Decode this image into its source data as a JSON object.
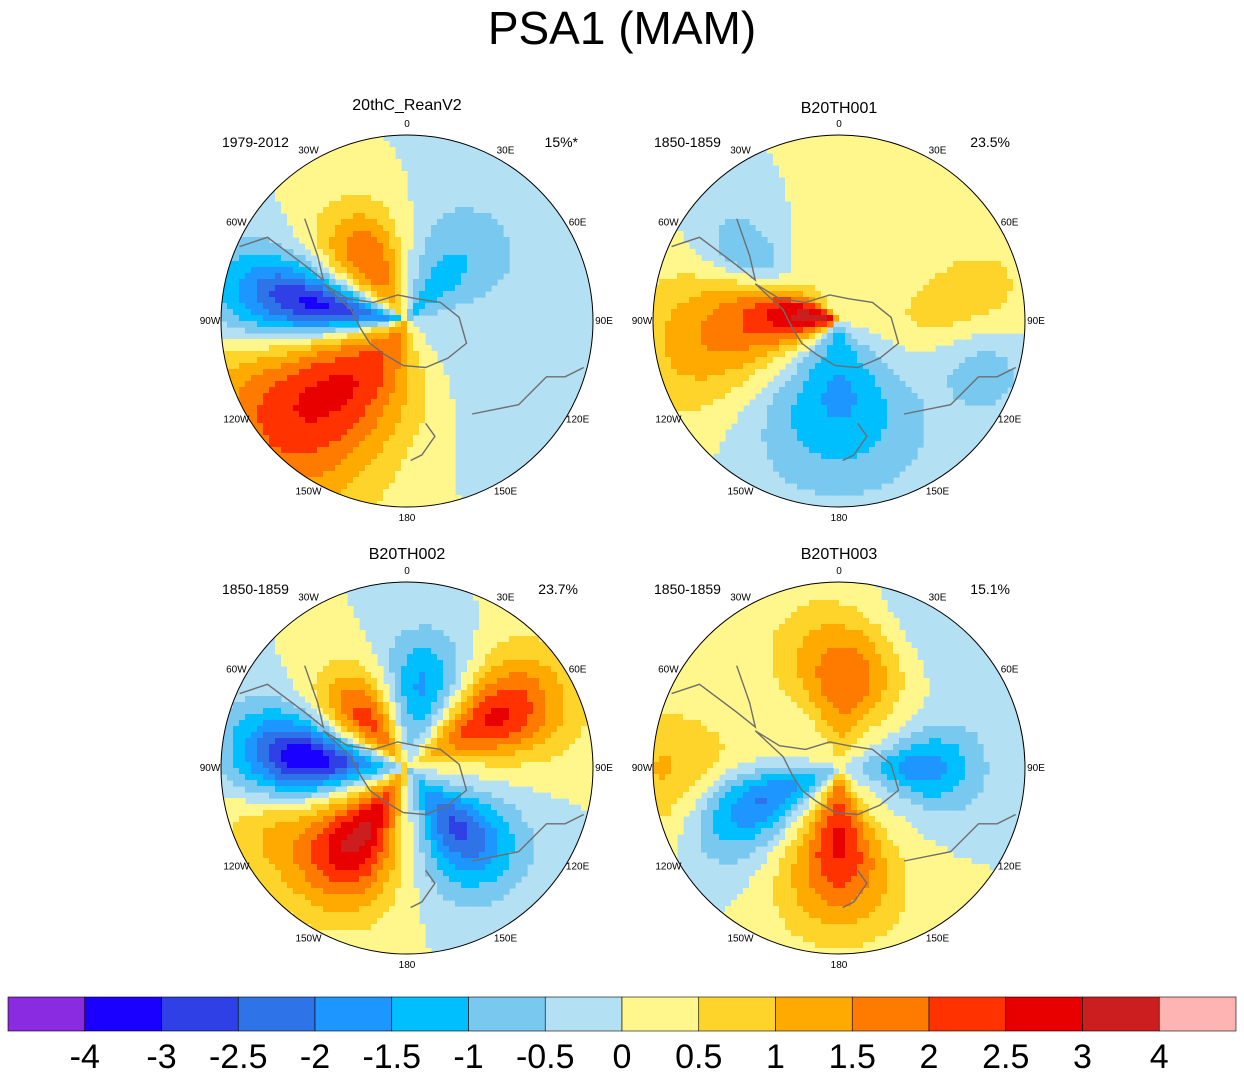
{
  "title": "PSA1 (MAM)",
  "lon_labels": [
    "0",
    "30E",
    "60E",
    "90E",
    "120E",
    "150E",
    "180",
    "150W",
    "120W",
    "90W",
    "60W",
    "30W"
  ],
  "panels": [
    {
      "name": "20thC_ReanV2",
      "years": "1979-2012",
      "variance": "15%*",
      "blobs": [
        {
          "r": 0.52,
          "a": 280,
          "sr": 0.5,
          "sa": 0.32,
          "v": -3.4
        },
        {
          "r": 0.38,
          "a": 328,
          "sr": 0.32,
          "sa": 0.45,
          "v": 2.0
        },
        {
          "r": 0.25,
          "a": 40,
          "sr": 0.5,
          "sa": 0.6,
          "v": -1.2
        },
        {
          "r": 0.72,
          "a": 230,
          "sr": 0.6,
          "sa": 0.6,
          "v": 2.4
        },
        {
          "r": 0.7,
          "a": 120,
          "sr": 0.45,
          "sa": 0.6,
          "v": -0.5
        },
        {
          "r": 0.25,
          "a": 200,
          "sr": 0.4,
          "sa": 0.7,
          "v": 1.2
        }
      ]
    },
    {
      "name": "B20TH001",
      "years": "1850-1859",
      "variance": "23.5%",
      "blobs": [
        {
          "r": 0.12,
          "a": 280,
          "sr": 0.45,
          "sa": 0.6,
          "v": 3.2
        },
        {
          "r": 0.55,
          "a": 305,
          "sr": 0.3,
          "sa": 0.3,
          "v": -1.6
        },
        {
          "r": 0.4,
          "a": 180,
          "sr": 0.5,
          "sa": 0.8,
          "v": -1.6
        },
        {
          "r": 0.7,
          "a": 90,
          "sr": 0.4,
          "sa": 0.5,
          "v": 1.2
        },
        {
          "r": 0.75,
          "a": 260,
          "sr": 0.4,
          "sa": 0.5,
          "v": 1.2
        },
        {
          "r": 0.8,
          "a": 105,
          "sr": 0.3,
          "sa": 0.35,
          "v": -1.4
        }
      ]
    },
    {
      "name": "B20TH002",
      "years": "1850-1859",
      "variance": "23.7%",
      "blobs": [
        {
          "r": 0.55,
          "a": 275,
          "sr": 0.38,
          "sa": 0.35,
          "v": -3.6
        },
        {
          "r": 0.45,
          "a": 215,
          "sr": 0.4,
          "sa": 0.45,
          "v": 3.2
        },
        {
          "r": 0.55,
          "a": 60,
          "sr": 0.4,
          "sa": 0.4,
          "v": 2.6
        },
        {
          "r": 0.42,
          "a": 140,
          "sr": 0.35,
          "sa": 0.45,
          "v": -2.6
        },
        {
          "r": 0.35,
          "a": 320,
          "sr": 0.3,
          "sa": 0.4,
          "v": 2.2
        },
        {
          "r": 0.45,
          "a": 10,
          "sr": 0.3,
          "sa": 0.4,
          "v": -1.6
        },
        {
          "r": 0.8,
          "a": 250,
          "sr": 0.3,
          "sa": 0.35,
          "v": 1.0
        }
      ]
    },
    {
      "name": "B20TH003",
      "years": "1850-1859",
      "variance": "15.1%",
      "blobs": [
        {
          "r": 0.5,
          "a": 250,
          "sr": 0.4,
          "sa": 0.4,
          "v": -2.6
        },
        {
          "r": 0.5,
          "a": 5,
          "sr": 0.4,
          "sa": 0.6,
          "v": 2.0
        },
        {
          "r": 0.4,
          "a": 180,
          "sr": 0.45,
          "sa": 0.5,
          "v": 2.6
        },
        {
          "r": 0.45,
          "a": 90,
          "sr": 0.3,
          "sa": 0.4,
          "v": -1.8
        },
        {
          "r": 0.8,
          "a": 265,
          "sr": 0.45,
          "sa": 0.4,
          "v": 1.6
        },
        {
          "r": 0.85,
          "a": 30,
          "sr": 0.3,
          "sa": 0.5,
          "v": -0.8
        }
      ]
    }
  ],
  "colorbar": {
    "colors": [
      "#8a2be2",
      "#1900ff",
      "#2e40e6",
      "#2f73e8",
      "#1e96ff",
      "#00bfff",
      "#78c8f0",
      "#b4e0f4",
      "#fff68c",
      "#ffd42a",
      "#ffaa00",
      "#ff7b00",
      "#ff3200",
      "#e80000",
      "#cc1e1e",
      "#ffb4b4"
    ],
    "labels": [
      "-4",
      "-3",
      "-2.5",
      "-2",
      "-1.5",
      "-1",
      "-0.5",
      "0",
      "0.5",
      "1",
      "1.5",
      "2",
      "2.5",
      "3",
      "4"
    ],
    "boundaries": [
      -4,
      -3,
      -2.5,
      -2,
      -1.5,
      -1,
      -0.5,
      0,
      0.5,
      1,
      1.5,
      2,
      2.5,
      3,
      4
    ]
  }
}
